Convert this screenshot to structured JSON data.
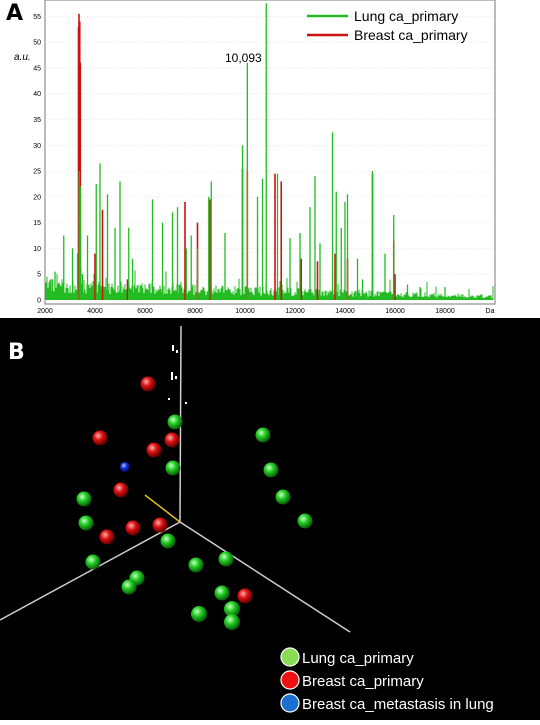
{
  "panel_a": {
    "letter": "A"
  },
  "panel_b": {
    "letter": "B"
  },
  "chart_data": [
    {
      "type": "line",
      "x_unit_label": "Da",
      "y_unit_label": "a.u.",
      "xlim": [
        2000,
        20000
      ],
      "ylim": [
        0,
        57
      ],
      "x_ticks": [
        "2000",
        "4000",
        "6000",
        "8000",
        "10000",
        "12000",
        "14000",
        "16000",
        "18000",
        "Da"
      ],
      "y_ticks": [
        "0",
        "5",
        "10",
        "15",
        "20",
        "25",
        "30",
        "35",
        "40",
        "45",
        "50",
        "55"
      ],
      "annotation": {
        "text": "10,093"
      },
      "legend": {
        "placement": "top-right"
      },
      "series": [
        {
          "name": "Lung ca_primary",
          "color": "#22bb22",
          "peaks": [
            [
              2300,
              4
            ],
            [
              2400,
              5.5
            ],
            [
              2750,
              12.5
            ],
            [
              3100,
              10
            ],
            [
              3300,
              9
            ],
            [
              3370,
              25
            ],
            [
              3420,
              22
            ],
            [
              3500,
              5
            ],
            [
              3700,
              12.5
            ],
            [
              4050,
              22.5
            ],
            [
              4200,
              26.5
            ],
            [
              4500,
              20.5
            ],
            [
              4800,
              14
            ],
            [
              5000,
              23
            ],
            [
              5350,
              14
            ],
            [
              5500,
              8
            ],
            [
              6300,
              19.5
            ],
            [
              6700,
              15
            ],
            [
              7100,
              17
            ],
            [
              7300,
              18
            ],
            [
              7650,
              10
            ],
            [
              7850,
              12.5
            ],
            [
              8100,
              10
            ],
            [
              8550,
              20
            ],
            [
              8650,
              23
            ],
            [
              9200,
              13
            ],
            [
              9900,
              30
            ],
            [
              10093,
              46
            ],
            [
              10500,
              20
            ],
            [
              10700,
              23.5
            ],
            [
              10850,
              57.5
            ],
            [
              11300,
              24.5
            ],
            [
              11800,
              12
            ],
            [
              12200,
              13
            ],
            [
              12600,
              18
            ],
            [
              12800,
              24
            ],
            [
              13000,
              11
            ],
            [
              13500,
              32.5
            ],
            [
              13650,
              21
            ],
            [
              13850,
              14
            ],
            [
              14000,
              19
            ],
            [
              14100,
              20.5
            ],
            [
              14500,
              8
            ],
            [
              14700,
              4
            ],
            [
              15100,
              25
            ],
            [
              15600,
              9
            ],
            [
              15950,
              16.5
            ],
            [
              16500,
              3
            ],
            [
              17000,
              2.5
            ],
            [
              18000,
              2.5
            ]
          ]
        },
        {
          "name": "Breast ca_primary",
          "color": "#cc1111",
          "peaks": [
            [
              3340,
              53
            ],
            [
              3360,
              55.5
            ],
            [
              3390,
              54
            ],
            [
              3410,
              46
            ],
            [
              4000,
              9
            ],
            [
              4300,
              17.5
            ],
            [
              5300,
              4
            ],
            [
              7600,
              19
            ],
            [
              8100,
              15
            ],
            [
              8600,
              19.5
            ],
            [
              9900,
              25.5
            ],
            [
              10093,
              25
            ],
            [
              11200,
              24.5
            ],
            [
              11450,
              23
            ],
            [
              12250,
              8
            ],
            [
              12900,
              7.5
            ],
            [
              13600,
              9
            ],
            [
              14100,
              8
            ],
            [
              15100,
              24.5
            ],
            [
              15950,
              11.5
            ],
            [
              16000,
              5
            ]
          ]
        }
      ]
    },
    {
      "type": "scatter",
      "legend": {
        "placement": "bottom-right"
      },
      "series": [
        {
          "name": "Lung ca_primary",
          "color": "#22cc22",
          "points": [
            [
              175,
              422
            ],
            [
              263,
              435
            ],
            [
              173,
              468
            ],
            [
              271,
              470
            ],
            [
              84,
              499
            ],
            [
              283,
              497
            ],
            [
              86,
              523
            ],
            [
              305,
              521
            ],
            [
              168,
              541
            ],
            [
              226,
              559
            ],
            [
              93,
              562
            ],
            [
              196,
              565
            ],
            [
              137,
              578
            ],
            [
              129,
              587
            ],
            [
              222,
              593
            ],
            [
              232,
              609
            ],
            [
              199,
              614
            ],
            [
              232,
              622
            ]
          ]
        },
        {
          "name": "Breast ca_primary",
          "color": "#dd1111",
          "points": [
            [
              148,
              384
            ],
            [
              100,
              438
            ],
            [
              172,
              440
            ],
            [
              154,
              450
            ],
            [
              121,
              490
            ],
            [
              133,
              528
            ],
            [
              160,
              525
            ],
            [
              107,
              537
            ],
            [
              245,
              596
            ]
          ]
        },
        {
          "name": "Breast ca_metastasis in lung",
          "color": "#1133dd",
          "points": [
            [
              125,
              467
            ]
          ]
        }
      ]
    }
  ]
}
